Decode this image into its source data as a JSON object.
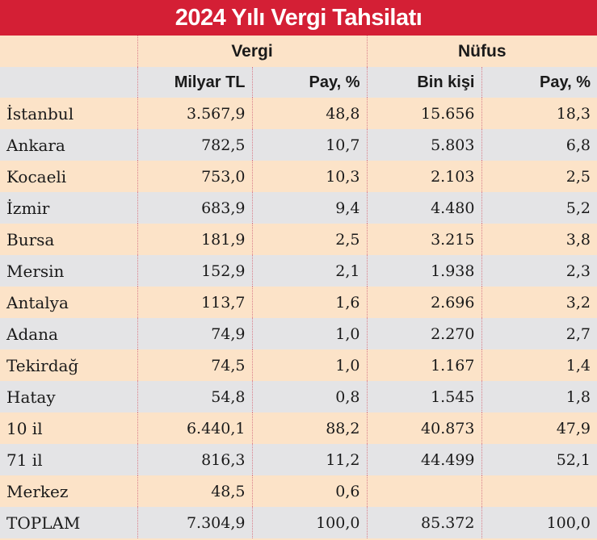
{
  "title": "2024 Yılı Vergi Tahsilatı",
  "groups": {
    "vergi": "Vergi",
    "nufus": "Nüfus"
  },
  "units": {
    "milyar_tl": "Milyar TL",
    "pay_vergi": "Pay, %",
    "bin_kisi": "Bin kişi",
    "pay_nufus": "Pay, %"
  },
  "rows": [
    {
      "name": "İstanbul",
      "vergi": "3.567,9",
      "vergi_pay": "48,8",
      "nufus": "15.656",
      "nufus_pay": "18,3"
    },
    {
      "name": "Ankara",
      "vergi": "782,5",
      "vergi_pay": "10,7",
      "nufus": "5.803",
      "nufus_pay": "6,8"
    },
    {
      "name": "Kocaeli",
      "vergi": "753,0",
      "vergi_pay": "10,3",
      "nufus": "2.103",
      "nufus_pay": "2,5"
    },
    {
      "name": "İzmir",
      "vergi": "683,9",
      "vergi_pay": "9,4",
      "nufus": "4.480",
      "nufus_pay": "5,2"
    },
    {
      "name": "Bursa",
      "vergi": "181,9",
      "vergi_pay": "2,5",
      "nufus": "3.215",
      "nufus_pay": "3,8"
    },
    {
      "name": "Mersin",
      "vergi": "152,9",
      "vergi_pay": "2,1",
      "nufus": "1.938",
      "nufus_pay": "2,3"
    },
    {
      "name": "Antalya",
      "vergi": "113,7",
      "vergi_pay": "1,6",
      "nufus": "2.696",
      "nufus_pay": "3,2"
    },
    {
      "name": "Adana",
      "vergi": "74,9",
      "vergi_pay": "1,0",
      "nufus": "2.270",
      "nufus_pay": "2,7"
    },
    {
      "name": "Tekirdağ",
      "vergi": "74,5",
      "vergi_pay": "1,0",
      "nufus": "1.167",
      "nufus_pay": "1,4"
    },
    {
      "name": "Hatay",
      "vergi": "54,8",
      "vergi_pay": "0,8",
      "nufus": "1.545",
      "nufus_pay": "1,8"
    },
    {
      "name": "10 il",
      "vergi": "6.440,1",
      "vergi_pay": "88,2",
      "nufus": "40.873",
      "nufus_pay": "47,9"
    },
    {
      "name": "71 il",
      "vergi": "816,3",
      "vergi_pay": "11,2",
      "nufus": "44.499",
      "nufus_pay": "52,1"
    },
    {
      "name": "Merkez",
      "vergi": "48,5",
      "vergi_pay": "0,6",
      "nufus": "",
      "nufus_pay": ""
    },
    {
      "name": "TOPLAM",
      "vergi": "7.304,9",
      "vergi_pay": "100,0",
      "nufus": "85.372",
      "nufus_pay": "100,0"
    }
  ]
}
